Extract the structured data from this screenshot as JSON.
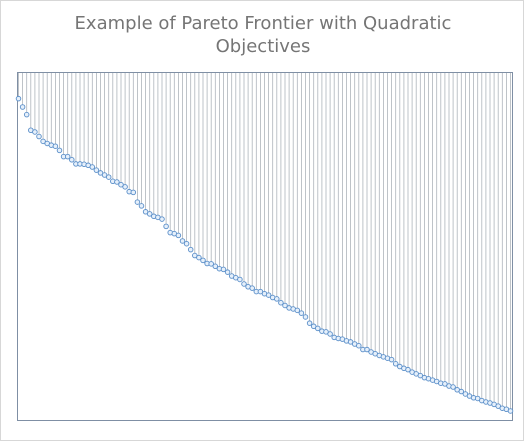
{
  "chart_data": {
    "type": "scatter",
    "title_lines": [
      "Example of Pareto Frontier with Quadratic",
      "Objectives"
    ],
    "xlabel": "",
    "ylabel": "",
    "xlim": [
      0,
      120
    ],
    "ylim": [
      0,
      1
    ],
    "grid": false,
    "legend": "none",
    "x": [
      0,
      1,
      2,
      3,
      4,
      5,
      6,
      7,
      8,
      9,
      10,
      11,
      12,
      13,
      14,
      15,
      16,
      17,
      18,
      19,
      20,
      21,
      22,
      23,
      24,
      25,
      26,
      27,
      28,
      29,
      30,
      31,
      32,
      33,
      34,
      35,
      36,
      37,
      38,
      39,
      40,
      41,
      42,
      43,
      44,
      45,
      46,
      47,
      48,
      49,
      50,
      51,
      52,
      53,
      54,
      55,
      56,
      57,
      58,
      59,
      60,
      61,
      62,
      63,
      64,
      65,
      66,
      67,
      68,
      69,
      70,
      71,
      72,
      73,
      74,
      75,
      76,
      77,
      78,
      79,
      80,
      81,
      82,
      83,
      84,
      85,
      86,
      87,
      88,
      89,
      90,
      91,
      92,
      93,
      94,
      95,
      96,
      97,
      98,
      99,
      100,
      101,
      102,
      103,
      104,
      105,
      106,
      107,
      108,
      109,
      110,
      111,
      112,
      113,
      114,
      115,
      116,
      117,
      118,
      119,
      120
    ],
    "y": [
      0.926,
      0.902,
      0.88,
      0.835,
      0.83,
      0.817,
      0.803,
      0.797,
      0.792,
      0.789,
      0.777,
      0.759,
      0.759,
      0.75,
      0.738,
      0.738,
      0.737,
      0.734,
      0.729,
      0.72,
      0.712,
      0.706,
      0.7,
      0.688,
      0.686,
      0.678,
      0.672,
      0.658,
      0.656,
      0.628,
      0.617,
      0.6,
      0.594,
      0.587,
      0.584,
      0.579,
      0.558,
      0.54,
      0.537,
      0.532,
      0.516,
      0.508,
      0.491,
      0.474,
      0.468,
      0.46,
      0.451,
      0.45,
      0.443,
      0.436,
      0.434,
      0.426,
      0.415,
      0.41,
      0.405,
      0.392,
      0.384,
      0.38,
      0.37,
      0.37,
      0.364,
      0.36,
      0.353,
      0.349,
      0.338,
      0.33,
      0.323,
      0.32,
      0.316,
      0.308,
      0.297,
      0.279,
      0.27,
      0.264,
      0.256,
      0.254,
      0.248,
      0.238,
      0.235,
      0.233,
      0.228,
      0.225,
      0.219,
      0.214,
      0.203,
      0.203,
      0.196,
      0.191,
      0.186,
      0.182,
      0.178,
      0.174,
      0.162,
      0.154,
      0.149,
      0.145,
      0.138,
      0.133,
      0.128,
      0.122,
      0.119,
      0.115,
      0.111,
      0.106,
      0.104,
      0.098,
      0.095,
      0.087,
      0.082,
      0.075,
      0.069,
      0.064,
      0.062,
      0.056,
      0.052,
      0.049,
      0.045,
      0.04,
      0.034,
      0.031,
      0.026
    ],
    "colors": {
      "marker_stroke": "#5b8fc9",
      "marker_fill": "#e6f0fb",
      "drop_line": "#aeb4bb",
      "frame": "#7f8fa4",
      "title": "#757575"
    }
  }
}
